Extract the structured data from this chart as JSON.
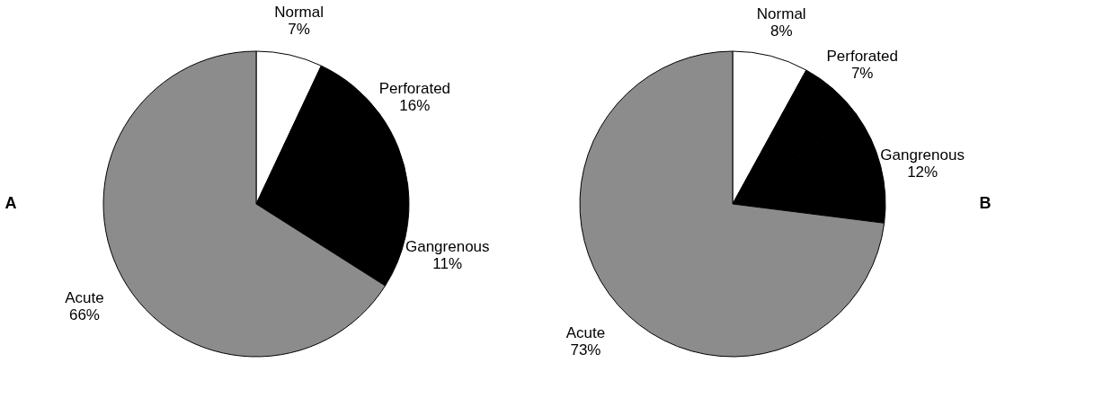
{
  "chart_data": [
    {
      "type": "pie",
      "title": "A",
      "categories": [
        "Normal",
        "Perforated",
        "Gangrenous",
        "Acute"
      ],
      "values": [
        7,
        16,
        11,
        66
      ],
      "value_labels": [
        "7%",
        "16%",
        "11%",
        "66%"
      ],
      "colors": [
        "#ffffff",
        "#000000",
        "#000000",
        "#8c8c8c"
      ],
      "legend": false
    },
    {
      "type": "pie",
      "title": "B",
      "categories": [
        "Normal",
        "Perforated",
        "Gangrenous",
        "Acute"
      ],
      "values": [
        8,
        7,
        12,
        73
      ],
      "value_labels": [
        "8%",
        "7%",
        "12%",
        "73%"
      ],
      "colors": [
        "#ffffff",
        "#000000",
        "#000000",
        "#8c8c8c"
      ],
      "legend": false
    }
  ]
}
